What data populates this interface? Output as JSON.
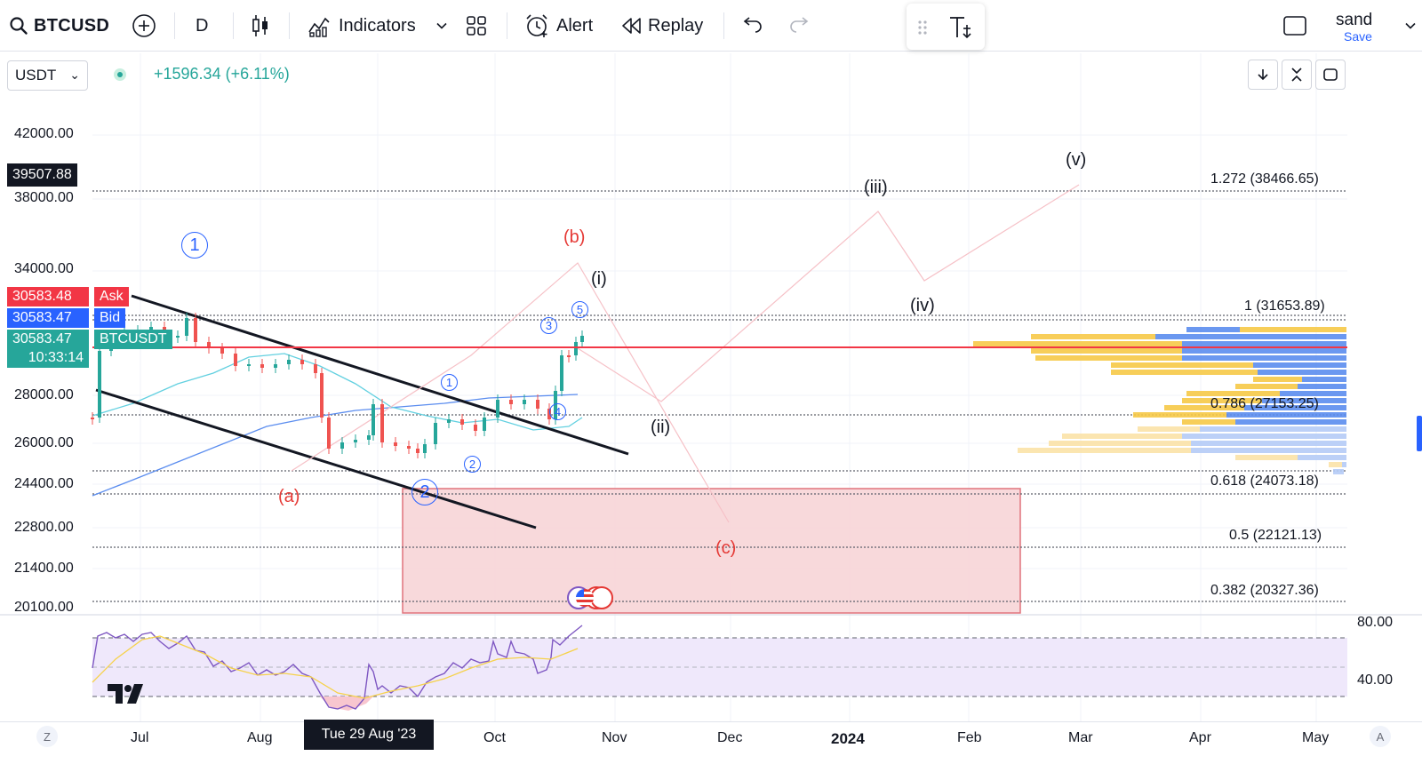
{
  "toolbar": {
    "symbol": "BTCUSD",
    "interval": "D",
    "indicators_label": "Indicators",
    "alert_label": "Alert",
    "replay_label": "Replay",
    "user_name": "sand",
    "save_label": "Save"
  },
  "header": {
    "currency": "USDT",
    "change": "+1596.34 (+6.11%)"
  },
  "price_axis": {
    "labels": [
      "42000.00",
      "38000.00",
      "34000.00",
      "28000.00",
      "26000.00",
      "24400.00",
      "22800.00",
      "21400.00",
      "20100.00"
    ],
    "crosshair_price": "39507.88",
    "ask_price": "30583.48",
    "ask_label": "Ask",
    "bid_price": "30583.47",
    "bid_label": "Bid",
    "last_price": "30583.47",
    "last_symbol": "BTCUSDT",
    "countdown": "10:33:14"
  },
  "fib_levels": [
    {
      "text": "1.272 (38466.65)"
    },
    {
      "text": "1 (31653.89)"
    },
    {
      "text": "0.786 (27153.25)"
    },
    {
      "text": "0.618 (24073.18)"
    },
    {
      "text": "0.5 (22121.13)"
    },
    {
      "text": "0.382 (20327.36)"
    }
  ],
  "waves": {
    "primary_1": "1",
    "primary_2": "2",
    "minor_1": "1",
    "minor_2": "2",
    "minor_3": "3",
    "minor_4": "4",
    "minor_5": "5",
    "a": "(a)",
    "b": "(b)",
    "c": "(c)",
    "i": "(i)",
    "ii": "(ii)",
    "iii": "(iii)",
    "iv": "(iv)",
    "v": "(v)"
  },
  "rsi_axis": {
    "upper": "80.00",
    "lower": "40.00"
  },
  "time_axis": {
    "labels": [
      "Jul",
      "Aug",
      "Oct",
      "Nov",
      "Dec",
      "2024",
      "Feb",
      "Mar",
      "Apr",
      "May"
    ],
    "crosshair_date": "Tue 29 Aug '23",
    "left_button": "Z",
    "right_button": "A"
  },
  "colors": {
    "up": "#26a69a",
    "down": "#ef5350",
    "ask": "#f23645",
    "bid": "#2962ff",
    "wave_blue": "#2962ff",
    "wave_red": "#e53935"
  }
}
